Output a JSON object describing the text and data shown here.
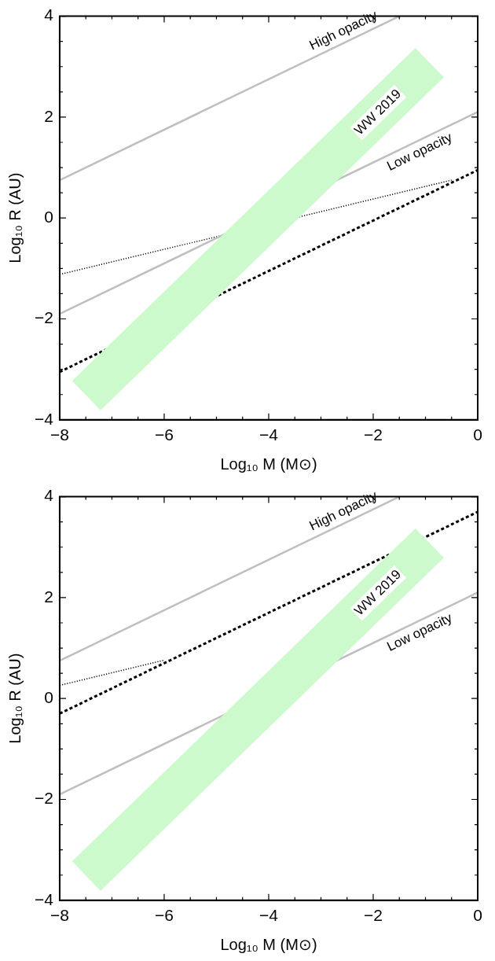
{
  "chart_data": [
    {
      "type": "line",
      "xlabel": "Log₁₀ M (M⊙)",
      "ylabel": "Log₁₀ R (AU)",
      "xlim": [
        -8,
        0
      ],
      "ylim": [
        -4,
        4
      ],
      "xticks": [
        -8,
        {
          "value": -7.5,
          "label": null
        },
        {
          "value": -7,
          "label": null
        },
        {
          "value": -6.5,
          "label": null
        },
        -6,
        {
          "value": -5.5,
          "label": null
        },
        {
          "value": -5,
          "label": null
        },
        {
          "value": -4.5,
          "label": null
        },
        -4,
        {
          "value": -3.5,
          "label": null
        },
        {
          "value": -3,
          "label": null
        },
        {
          "value": -2.5,
          "label": null
        },
        -2,
        {
          "value": -1.5,
          "label": null
        },
        {
          "value": -1,
          "label": null
        },
        {
          "value": -0.5,
          "label": null
        },
        0
      ],
      "yticks": [
        -4,
        {
          "value": -3.5,
          "label": null
        },
        {
          "value": -3,
          "label": null
        },
        {
          "value": -2.5,
          "label": null
        },
        -2,
        {
          "value": -1.5,
          "label": null
        },
        {
          "value": -1,
          "label": null
        },
        {
          "value": -0.5,
          "label": null
        },
        0,
        {
          "value": 0.5,
          "label": null
        },
        {
          "value": 1,
          "label": null
        },
        {
          "value": 1.5,
          "label": null
        },
        2,
        {
          "value": 2.5,
          "label": null
        },
        {
          "value": 3,
          "label": null
        },
        {
          "value": 3.5,
          "label": null
        },
        4
      ],
      "grid": false,
      "legend": false,
      "marker": "none",
      "series": [
        {
          "name": "WW 2019",
          "color": "#ccfacc",
          "x": [
            -7.49,
            -0.92
          ],
          "values": [
            -3.52,
            3.08
          ]
        },
        {
          "name": "High opacity",
          "color": "#bfbfbf",
          "line_style": "solid",
          "x": [
            -8,
            -1.5
          ],
          "values": [
            0.75,
            4
          ]
        },
        {
          "name": "Low opacity",
          "color": "#bfbfbf",
          "line_style": "solid",
          "x": [
            -8,
            0
          ],
          "values": [
            -1.9,
            2.1
          ]
        },
        {
          "color": "#000000",
          "line_style": "dotted",
          "x": [
            -8,
            -0.5
          ],
          "values": [
            -1.12,
            0.75
          ]
        },
        {
          "color": "#000000",
          "line_style": "dashed",
          "x": [
            -8,
            -4,
            0
          ],
          "values": [
            -3.05,
            -1.05,
            0.95
          ]
        }
      ]
    },
    {
      "type": "line",
      "xlabel": "Log₁₀ M (M⊙)",
      "ylabel": "Log₁₀ R (AU)",
      "xlim": [
        -8,
        0
      ],
      "ylim": [
        -4,
        4
      ],
      "xticks": [
        -8,
        {
          "value": -7.5,
          "label": null
        },
        {
          "value": -7,
          "label": null
        },
        {
          "value": -6.5,
          "label": null
        },
        -6,
        {
          "value": -5.5,
          "label": null
        },
        {
          "value": -5,
          "label": null
        },
        {
          "value": -4.5,
          "label": null
        },
        -4,
        {
          "value": -3.5,
          "label": null
        },
        {
          "value": -3,
          "label": null
        },
        {
          "value": -2.5,
          "label": null
        },
        -2,
        {
          "value": -1.5,
          "label": null
        },
        {
          "value": -1,
          "label": null
        },
        {
          "value": -0.5,
          "label": null
        },
        0
      ],
      "yticks": [
        -4,
        {
          "value": -3.5,
          "label": null
        },
        {
          "value": -3,
          "label": null
        },
        {
          "value": -2.5,
          "label": null
        },
        -2,
        {
          "value": -1.5,
          "label": null
        },
        {
          "value": -1,
          "label": null
        },
        {
          "value": -0.5,
          "label": null
        },
        0,
        {
          "value": 0.5,
          "label": null
        },
        {
          "value": 1,
          "label": null
        },
        {
          "value": 1.5,
          "label": null
        },
        2,
        {
          "value": 2.5,
          "label": null
        },
        {
          "value": 3,
          "label": null
        },
        {
          "value": 3.5,
          "label": null
        },
        4
      ],
      "grid": false,
      "legend": false,
      "marker": "none",
      "series": [
        {
          "name": "WW 2019",
          "color": "#ccfacc",
          "x": [
            -7.49,
            -0.92
          ],
          "values": [
            -3.52,
            3.08
          ]
        },
        {
          "name": "High opacity",
          "color": "#bfbfbf",
          "line_style": "solid",
          "x": [
            -8,
            -1.5
          ],
          "values": [
            0.75,
            4
          ]
        },
        {
          "name": "Low opacity",
          "color": "#bfbfbf",
          "line_style": "solid",
          "x": [
            -8,
            0
          ],
          "values": [
            -1.9,
            2.1
          ]
        },
        {
          "color": "#000000",
          "line_style": "dotted",
          "x": [
            -8,
            -6
          ],
          "values": [
            0.26,
            0.76
          ]
        },
        {
          "color": "#000000",
          "line_style": "dashed",
          "x": [
            -8,
            0
          ],
          "values": [
            -0.3,
            3.7
          ]
        }
      ]
    }
  ]
}
